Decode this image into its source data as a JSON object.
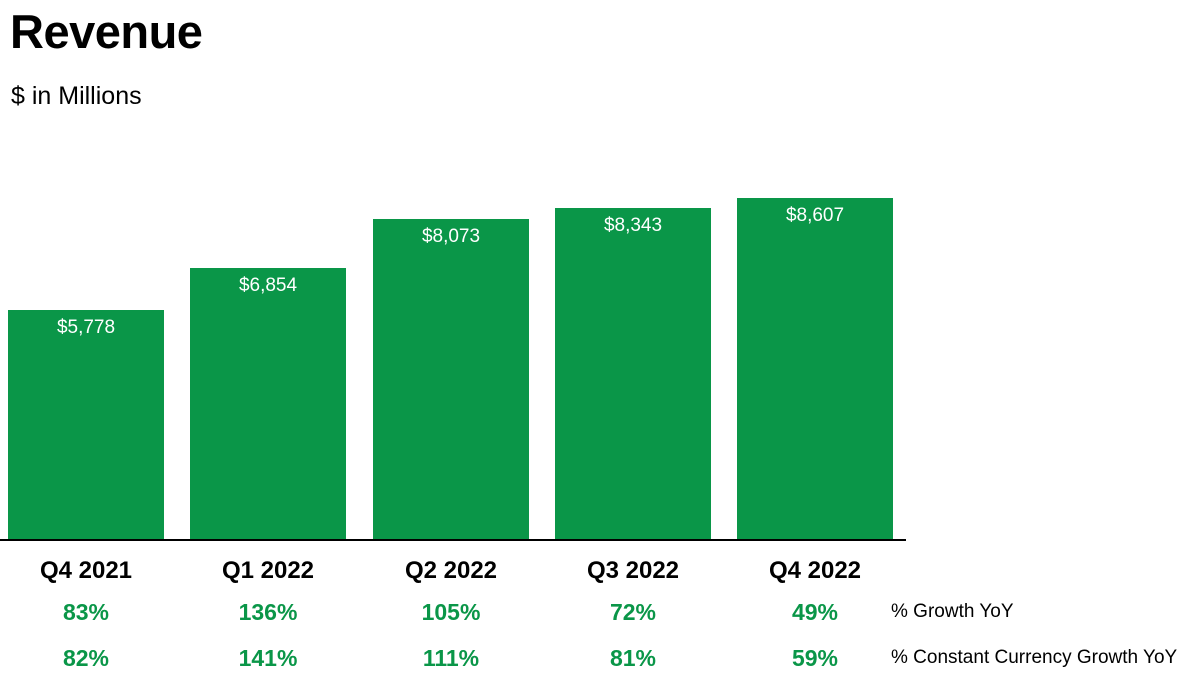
{
  "chart_data": {
    "type": "bar",
    "title": "Revenue",
    "subtitle": "$ in Millions",
    "categories": [
      "Q4 2021",
      "Q1 2022",
      "Q2 2022",
      "Q3 2022",
      "Q4 2022"
    ],
    "values": [
      5778,
      6854,
      8073,
      8343,
      8607
    ],
    "value_labels": [
      "$5,778",
      "$6,854",
      "$8,073",
      "$8,343",
      "$8,607"
    ],
    "ylim": [
      0,
      8607
    ],
    "grid": false,
    "legend": "none",
    "bar_color": "#0A9648",
    "bar_label_color": "#FFFFFF",
    "axis_color": "#000000",
    "growth_rows": [
      {
        "label": "% Growth YoY",
        "values": [
          "83%",
          "136%",
          "105%",
          "72%",
          "49%"
        ]
      },
      {
        "label": "% Constant Currency Growth YoY",
        "values": [
          "82%",
          "141%",
          "111%",
          "81%",
          "59%"
        ]
      }
    ]
  }
}
